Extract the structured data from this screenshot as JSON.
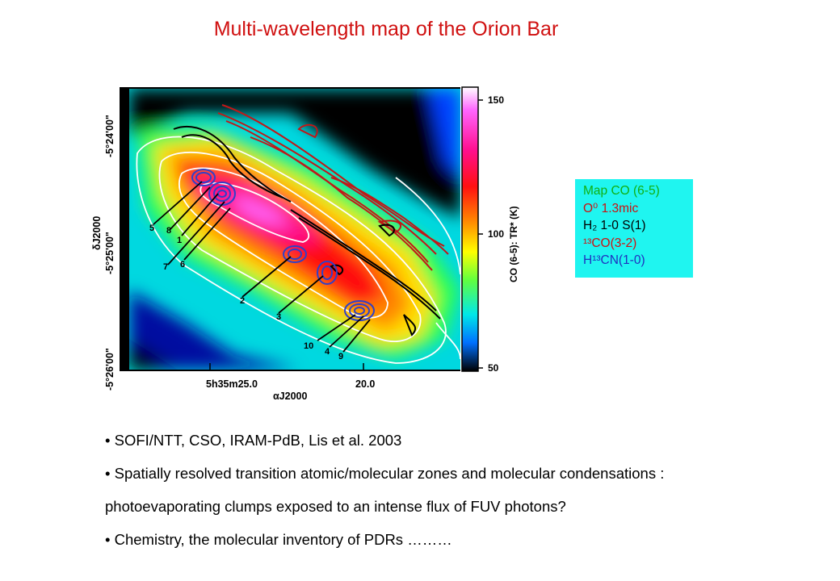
{
  "title": "Multi-wavelength map of the Orion Bar",
  "figure": {
    "dec_ticks": [
      "-5°24'00\"",
      "-5°25'00\"",
      "-5°26'00\""
    ],
    "ra_ticks": [
      "5h35m25.0",
      "20.0"
    ],
    "dec_axis_label": "δJ2000",
    "ra_axis_label": "αJ2000",
    "colorbar_ticks": [
      "150",
      "100",
      "50"
    ],
    "colorbar_label": "CO (6-5): TR* (K)",
    "condensation_labels": [
      "5",
      "8",
      "1",
      "7",
      "6",
      "2",
      "3",
      "10",
      "4",
      "9"
    ]
  },
  "legend": {
    "items": [
      {
        "text": "Map CO (6-5)",
        "color": "#10b010"
      },
      {
        "text": "O⁰ 1.3mic",
        "color": "#cc1010"
      },
      {
        "text": "H₂ 1-0 S(1)",
        "color": "#000000"
      },
      {
        "text": "¹³CO(3-2)",
        "color": "#d01010"
      },
      {
        "text": "H¹³CN(1-0)",
        "color": "#2030c0"
      }
    ]
  },
  "bullets": [
    "• SOFI/NTT, CSO, IRAM-PdB, Lis et al. 2003",
    "• Spatially resolved transition atomic/molecular zones and molecular condensations :",
    "photoevaporating clumps exposed to an intense flux of FUV photons?",
    "• Chemistry, the molecular inventory of PDRs ………"
  ]
}
